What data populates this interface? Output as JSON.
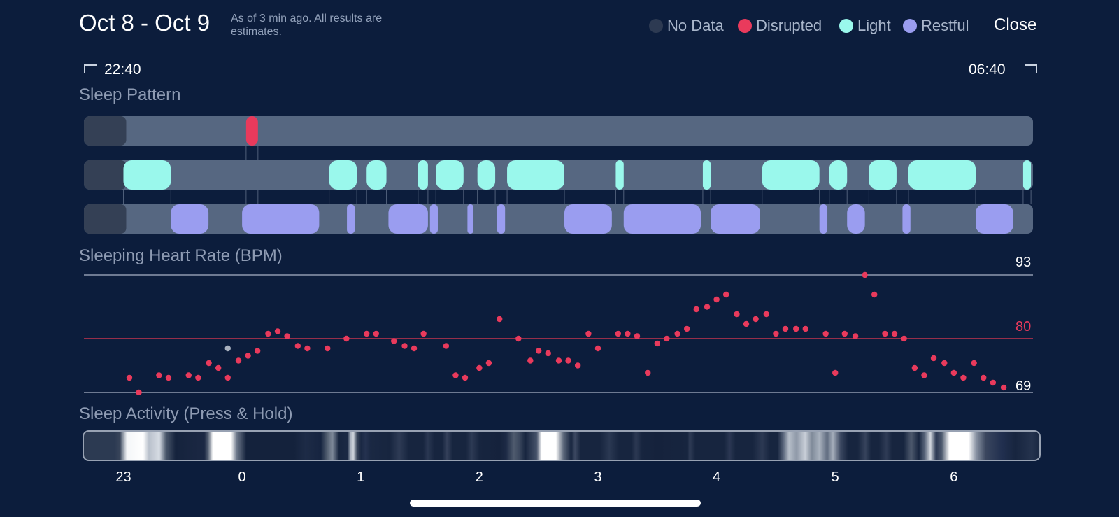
{
  "header": {
    "date_range": "Oct 8 - Oct 9",
    "as_of_text": "As of 3 min ago. All results are estimates.",
    "close_label": "Close"
  },
  "legend": [
    {
      "label": "No Data",
      "color": "#2d3a52"
    },
    {
      "label": "Disrupted",
      "color": "#e93a5c"
    },
    {
      "label": "Light",
      "color": "#9af8ec"
    },
    {
      "label": "Restful",
      "color": "#9a9df0"
    }
  ],
  "time_range": {
    "start": "22:40",
    "end": "06:40"
  },
  "sleep_pattern": {
    "title": "Sleep Pattern",
    "duration_hours": 8.0,
    "no_data_end_hour": 0.333,
    "disrupted": [
      [
        1.367,
        1.467
      ]
    ],
    "light": [
      [
        0.333,
        0.733
      ],
      [
        2.067,
        2.3
      ],
      [
        2.383,
        2.55
      ],
      [
        2.817,
        2.9
      ],
      [
        2.967,
        3.2
      ],
      [
        3.317,
        3.467
      ],
      [
        3.567,
        4.05
      ],
      [
        4.483,
        4.55
      ],
      [
        5.217,
        5.283
      ],
      [
        5.717,
        6.2
      ],
      [
        6.283,
        6.433
      ],
      [
        6.617,
        6.85
      ],
      [
        6.95,
        7.517
      ],
      [
        7.917,
        7.983
      ]
    ],
    "restful": [
      [
        0.733,
        1.05
      ],
      [
        1.333,
        1.983
      ],
      [
        2.217,
        2.283
      ],
      [
        2.567,
        2.9
      ],
      [
        2.917,
        2.983
      ],
      [
        3.233,
        3.283
      ],
      [
        3.483,
        3.55
      ],
      [
        4.05,
        4.45
      ],
      [
        4.55,
        5.2
      ],
      [
        5.283,
        5.7
      ],
      [
        6.2,
        6.267
      ],
      [
        6.433,
        6.583
      ],
      [
        6.9,
        6.967
      ],
      [
        7.517,
        7.833
      ]
    ]
  },
  "heart_rate": {
    "title": "Sleeping Heart Rate (BPM)",
    "max_label": "93",
    "avg_label": "80",
    "min_label": "69"
  },
  "activity": {
    "title": "Sleep Activity (Press & Hold)"
  },
  "chart_data": {
    "type": "scatter",
    "title": "Sleeping Heart Rate (BPM)",
    "xlabel": "",
    "ylabel": "BPM",
    "xlim": [
      22.667,
      30.667
    ],
    "ylim": [
      69,
      93
    ],
    "reference_lines": [
      93,
      80,
      69
    ],
    "x_ticks": [
      "23",
      "0",
      "1",
      "2",
      "3",
      "4",
      "5",
      "6"
    ],
    "x": [
      23.05,
      23.13,
      23.3,
      23.38,
      23.55,
      23.63,
      23.72,
      23.8,
      23.88,
      23.97,
      24.05,
      24.13,
      24.22,
      24.3,
      24.38,
      24.47,
      24.55,
      24.72,
      24.88,
      25.05,
      25.13,
      25.28,
      25.37,
      25.45,
      25.53,
      25.72,
      25.8,
      25.88,
      26.0,
      26.08,
      26.17,
      26.33,
      26.43,
      26.5,
      26.58,
      26.67,
      26.75,
      26.83,
      26.92,
      27.0,
      27.17,
      27.25,
      27.33,
      27.42,
      27.5,
      27.58,
      27.67,
      27.75,
      27.83,
      27.92,
      28.0,
      28.08,
      28.17,
      28.25,
      28.33,
      28.42,
      28.5,
      28.58,
      28.67,
      28.75,
      28.92,
      29.0,
      29.08,
      29.17,
      29.25,
      29.33,
      29.42,
      29.5,
      29.58,
      29.67,
      29.75,
      29.83,
      29.92,
      30.0,
      30.08,
      30.17,
      30.25,
      30.33,
      30.42
    ],
    "y": [
      72,
      69,
      72.5,
      72,
      72.5,
      72,
      75,
      74,
      72,
      75.5,
      76.5,
      77.5,
      81,
      81.5,
      80.5,
      78.5,
      78,
      78,
      80,
      81,
      81,
      79.5,
      78.5,
      78,
      81,
      78.5,
      72.5,
      72,
      74,
      75,
      84,
      80,
      75.5,
      77.5,
      77,
      75.5,
      75.5,
      74.5,
      81,
      78,
      81,
      81,
      80.5,
      73,
      79,
      80,
      81,
      82,
      86,
      86.5,
      88,
      89,
      85,
      83,
      84,
      85,
      81,
      82,
      82,
      82,
      81,
      73,
      81,
      80.5,
      93,
      89,
      81,
      81,
      80,
      74,
      72.5,
      76,
      75,
      73,
      72,
      75,
      72,
      71,
      70
    ],
    "y_note": "one grey outlier point at x=23.88, y=78"
  }
}
